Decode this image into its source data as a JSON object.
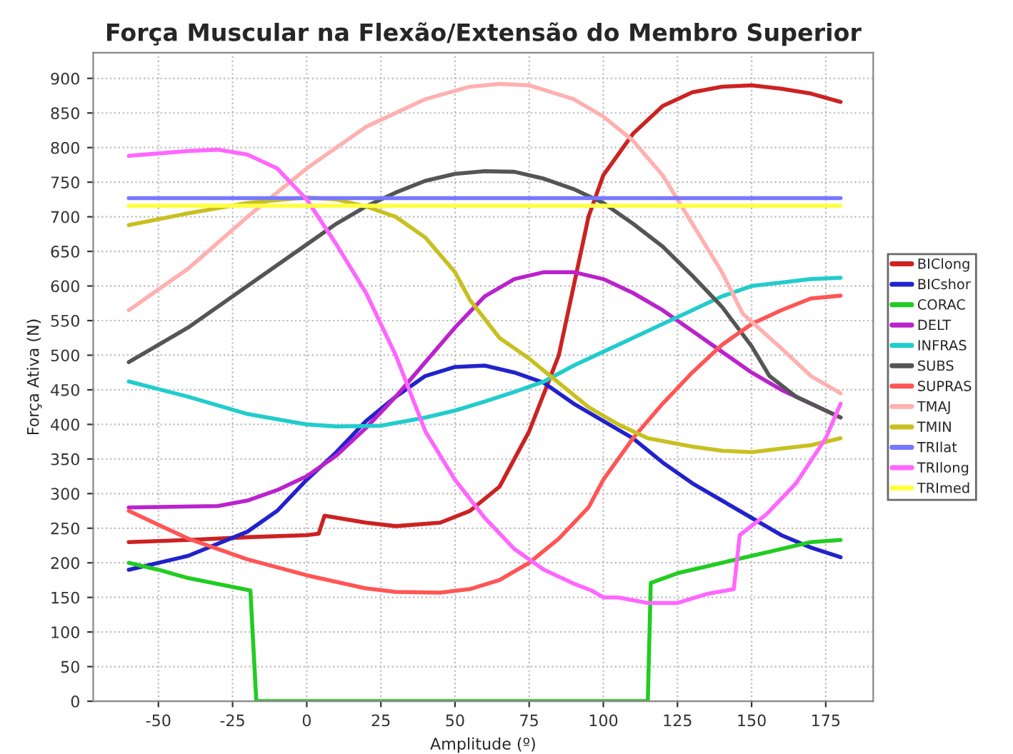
{
  "chart_data": {
    "type": "line",
    "title": "Força Muscular na Flexão/Extensão do Membro Superior",
    "xlabel": "Amplitude (º)",
    "ylabel": "Força Ativa (N)",
    "xlim": [
      -72,
      191
    ],
    "ylim": [
      0,
      937
    ],
    "xticks": [
      -50,
      -25,
      0,
      25,
      50,
      75,
      100,
      125,
      150,
      175
    ],
    "yticks": [
      0,
      50,
      100,
      150,
      200,
      250,
      300,
      350,
      400,
      450,
      500,
      550,
      600,
      650,
      700,
      750,
      800,
      850,
      900
    ],
    "grid": true,
    "legend": "right",
    "marker": "none",
    "line_style": "solid",
    "series": [
      {
        "name": "BIClong",
        "color": "#cc2222",
        "x": [
          -60,
          -40,
          -20,
          0,
          4,
          6,
          20,
          30,
          45,
          55,
          65,
          75,
          85,
          90,
          95,
          100,
          110,
          120,
          130,
          140,
          150,
          160,
          170,
          180
        ],
        "values": [
          230,
          233,
          237,
          240,
          242,
          268,
          258,
          253,
          258,
          275,
          310,
          390,
          500,
          600,
          700,
          760,
          820,
          860,
          880,
          888,
          890,
          885,
          878,
          866
        ]
      },
      {
        "name": "BICshor",
        "color": "#2222cc",
        "x": [
          -60,
          -40,
          -20,
          -10,
          0,
          10,
          20,
          30,
          40,
          50,
          60,
          70,
          80,
          90,
          100,
          110,
          120,
          130,
          140,
          150,
          160,
          170,
          180
        ],
        "values": [
          190,
          210,
          245,
          275,
          320,
          360,
          405,
          440,
          470,
          483,
          485,
          475,
          460,
          430,
          405,
          380,
          345,
          315,
          290,
          265,
          240,
          222,
          208
        ]
      },
      {
        "name": "CORAC",
        "color": "#22cc22",
        "x": [
          -60,
          -50,
          -40,
          -19,
          -17,
          115,
          116,
          125,
          140,
          150,
          160,
          170,
          180
        ],
        "values": [
          200,
          190,
          178,
          160,
          0,
          0,
          171,
          185,
          200,
          210,
          220,
          230,
          233
        ]
      },
      {
        "name": "DELT",
        "color": "#bb22cc",
        "x": [
          -60,
          -30,
          -20,
          -10,
          0,
          10,
          20,
          30,
          40,
          50,
          60,
          70,
          80,
          90,
          100,
          110,
          120,
          130,
          140,
          150,
          160,
          170,
          180
        ],
        "values": [
          280,
          282,
          290,
          305,
          325,
          355,
          395,
          440,
          490,
          540,
          585,
          610,
          620,
          620,
          610,
          590,
          565,
          535,
          505,
          475,
          450,
          430,
          410
        ]
      },
      {
        "name": "INFRAS",
        "color": "#22cccc",
        "x": [
          -60,
          -40,
          -20,
          0,
          10,
          25,
          40,
          50,
          60,
          70,
          80,
          90,
          100,
          110,
          120,
          130,
          140,
          150,
          160,
          170,
          180
        ],
        "values": [
          462,
          440,
          415,
          400,
          397,
          398,
          410,
          420,
          433,
          447,
          462,
          485,
          505,
          525,
          545,
          565,
          585,
          600,
          605,
          610,
          612
        ]
      },
      {
        "name": "SUBS",
        "color": "#555555",
        "x": [
          -60,
          -40,
          -20,
          0,
          10,
          20,
          30,
          40,
          50,
          60,
          70,
          80,
          90,
          100,
          110,
          120,
          130,
          140,
          150,
          156,
          165,
          180
        ],
        "values": [
          490,
          540,
          600,
          660,
          690,
          715,
          735,
          752,
          762,
          766,
          765,
          755,
          740,
          720,
          690,
          657,
          615,
          570,
          513,
          470,
          440,
          410
        ]
      },
      {
        "name": "SUPRAS",
        "color": "#ff5555",
        "x": [
          -60,
          -50,
          -40,
          -20,
          0,
          20,
          30,
          45,
          55,
          65,
          75,
          85,
          95,
          100,
          110,
          120,
          130,
          140,
          150,
          160,
          170,
          180
        ],
        "values": [
          275,
          255,
          235,
          205,
          182,
          163,
          158,
          157,
          162,
          175,
          200,
          235,
          280,
          320,
          380,
          430,
          475,
          515,
          545,
          565,
          582,
          586
        ]
      },
      {
        "name": "TMAJ",
        "color": "#ffb0b0",
        "x": [
          -60,
          -40,
          -20,
          0,
          20,
          40,
          55,
          65,
          75,
          90,
          100,
          110,
          120,
          130,
          140,
          147,
          160,
          170,
          180
        ],
        "values": [
          565,
          625,
          700,
          770,
          830,
          870,
          888,
          892,
          890,
          870,
          845,
          810,
          760,
          690,
          620,
          560,
          510,
          470,
          445
        ]
      },
      {
        "name": "TMIN",
        "color": "#c8c020",
        "x": [
          -60,
          -40,
          -20,
          0,
          10,
          20,
          30,
          40,
          50,
          55,
          65,
          75,
          85,
          95,
          105,
          115,
          130,
          140,
          150,
          160,
          170,
          180
        ],
        "values": [
          688,
          705,
          720,
          728,
          725,
          715,
          700,
          670,
          620,
          580,
          525,
          495,
          460,
          425,
          400,
          380,
          368,
          362,
          360,
          365,
          370,
          380
        ]
      },
      {
        "name": "TRIlat",
        "color": "#7777ff",
        "x": [
          -60,
          180
        ],
        "values": [
          727,
          727
        ]
      },
      {
        "name": "TRIlong",
        "color": "#ff66ff",
        "x": [
          -60,
          -40,
          -30,
          -20,
          -10,
          0,
          10,
          20,
          30,
          40,
          50,
          60,
          70,
          80,
          90,
          96,
          100,
          105,
          115,
          125,
          135,
          144,
          146,
          155,
          165,
          175,
          180
        ],
        "values": [
          788,
          795,
          797,
          790,
          770,
          725,
          660,
          590,
          500,
          390,
          320,
          265,
          220,
          190,
          170,
          160,
          150,
          150,
          142,
          142,
          155,
          162,
          240,
          270,
          315,
          380,
          430
        ]
      },
      {
        "name": "TRImed",
        "color": "#ffff44",
        "x": [
          -60,
          180
        ],
        "values": [
          716,
          716
        ]
      }
    ]
  }
}
